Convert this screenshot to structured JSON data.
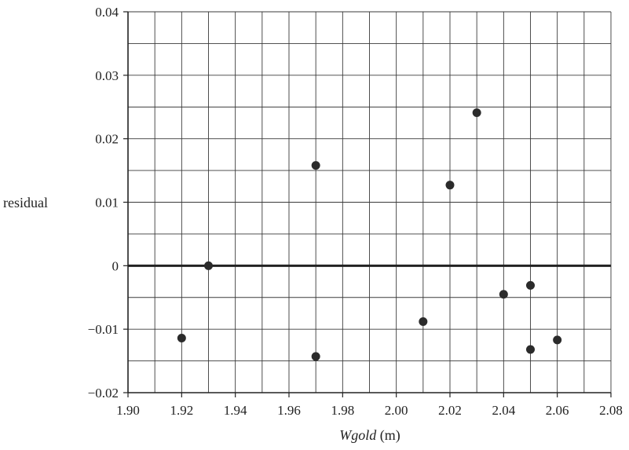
{
  "chart_data": {
    "type": "scatter",
    "xlabel_italic": "Wgold",
    "xlabel_unit": " (m)",
    "ylabel": "residual",
    "xlim": [
      1.9,
      2.08
    ],
    "ylim": [
      -0.02,
      0.04
    ],
    "x_ticks": [
      "1.90",
      "1.92",
      "1.94",
      "1.96",
      "1.98",
      "2.00",
      "2.02",
      "2.04",
      "2.06",
      "2.08"
    ],
    "y_ticks": [
      "0.04",
      "0.03",
      "0.02",
      "0.01",
      "0",
      "−0.01",
      "−0.02"
    ],
    "y_tick_values": [
      0.04,
      0.03,
      0.02,
      0.01,
      0,
      -0.01,
      -0.02
    ],
    "grid": true,
    "minor_grid_step": [
      0.01,
      0.005
    ],
    "reference_line_y": 0,
    "points": [
      {
        "x": 1.92,
        "y": -0.0114
      },
      {
        "x": 1.93,
        "y": 0.0
      },
      {
        "x": 1.97,
        "y": 0.0158
      },
      {
        "x": 1.97,
        "y": -0.0143
      },
      {
        "x": 2.01,
        "y": -0.0088
      },
      {
        "x": 2.02,
        "y": 0.0127
      },
      {
        "x": 2.03,
        "y": 0.0241
      },
      {
        "x": 2.04,
        "y": -0.0045
      },
      {
        "x": 2.05,
        "y": -0.0031
      },
      {
        "x": 2.05,
        "y": -0.0132
      },
      {
        "x": 2.06,
        "y": -0.0117
      }
    ],
    "colors": {
      "grid": "#3a3a3a",
      "axis": "#222222",
      "point": "#2b2b2b"
    }
  }
}
